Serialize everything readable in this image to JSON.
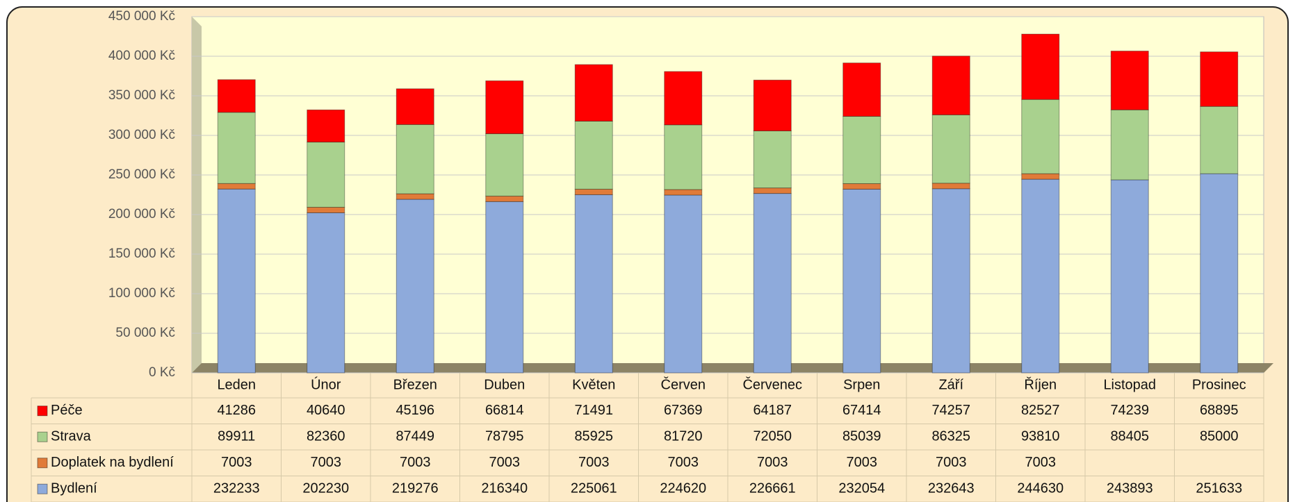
{
  "chart_data": {
    "type": "bar",
    "stacked": true,
    "categories": [
      "Leden",
      "Únor",
      "Březen",
      "Duben",
      "Květen",
      "Červen",
      "Červenec",
      "Srpen",
      "Září",
      "Říjen",
      "Listopad",
      "Prosinec"
    ],
    "series": [
      {
        "name": "Bydlení",
        "color": "#8eaadb",
        "values": [
          232233,
          202230,
          219276,
          216340,
          225061,
          224620,
          226661,
          232054,
          232643,
          244630,
          243893,
          251633
        ]
      },
      {
        "name": "Doplatek na bydlení",
        "color": "#e07b39",
        "values": [
          7003,
          7003,
          7003,
          7003,
          7003,
          7003,
          7003,
          7003,
          7003,
          7003,
          null,
          null
        ]
      },
      {
        "name": "Strava",
        "color": "#a9d18e",
        "values": [
          89911,
          82360,
          87449,
          78795,
          85925,
          81720,
          72050,
          85039,
          86325,
          93810,
          88405,
          85000
        ]
      },
      {
        "name": "Péče",
        "color": "#ff0000",
        "values": [
          41286,
          40640,
          45196,
          66814,
          71491,
          67369,
          64187,
          67414,
          74257,
          82527,
          74239,
          68895
        ]
      }
    ],
    "ylim": [
      0,
      450000
    ],
    "yticks": [
      {
        "value": 0,
        "label": "0 Kč"
      },
      {
        "value": 50000,
        "label": "50 000 Kč"
      },
      {
        "value": 100000,
        "label": "100 000 Kč"
      },
      {
        "value": 150000,
        "label": "150 000 Kč"
      },
      {
        "value": 200000,
        "label": "200 000 Kč"
      },
      {
        "value": 250000,
        "label": "250 000 Kč"
      },
      {
        "value": 300000,
        "label": "300 000 Kč"
      },
      {
        "value": 350000,
        "label": "350 000 Kč"
      },
      {
        "value": 400000,
        "label": "400 000 Kč"
      },
      {
        "value": 450000,
        "label": "450 000 Kč"
      }
    ],
    "grid": true,
    "data_table": true
  }
}
